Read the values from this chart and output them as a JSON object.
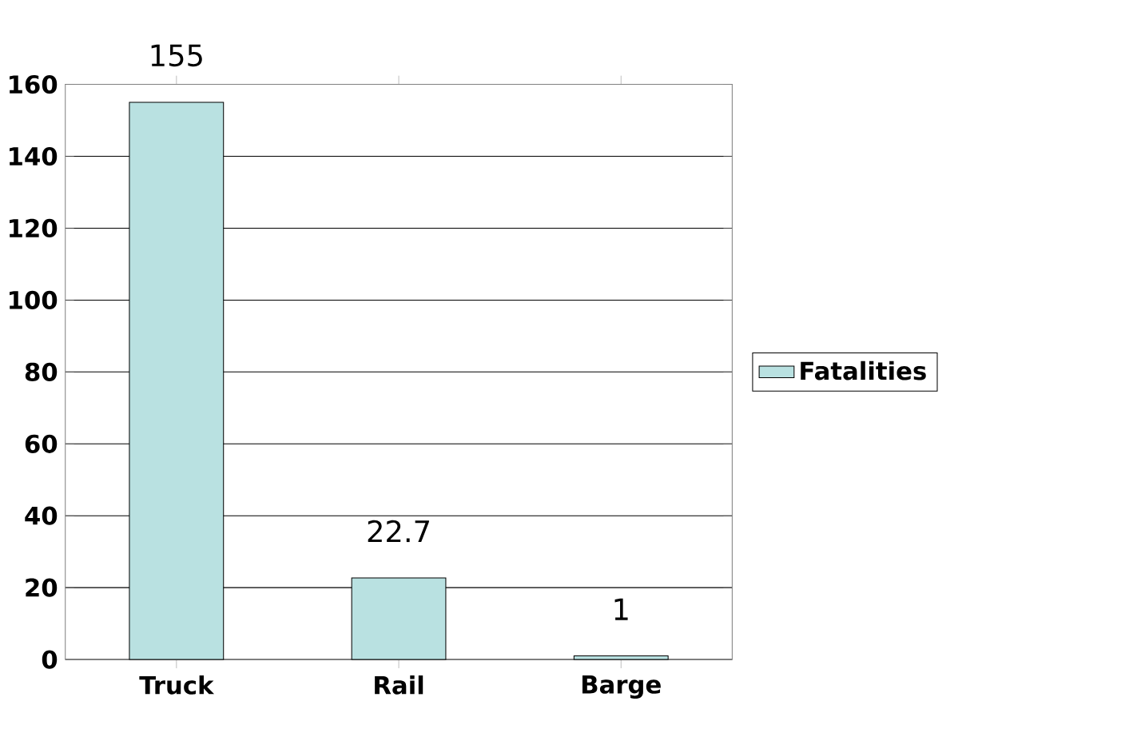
{
  "chart_data": {
    "type": "bar",
    "categories": [
      "Truck",
      "Rail",
      "Barge"
    ],
    "series": [
      {
        "name": "Fatalities",
        "color": "#b9e1e1",
        "values": [
          155,
          22.7,
          1
        ]
      }
    ],
    "ylim": [
      0,
      160
    ],
    "yticks": [
      0,
      20,
      40,
      60,
      80,
      100,
      120,
      140,
      160
    ],
    "grid": "y",
    "legend": "right",
    "data_labels": true
  }
}
